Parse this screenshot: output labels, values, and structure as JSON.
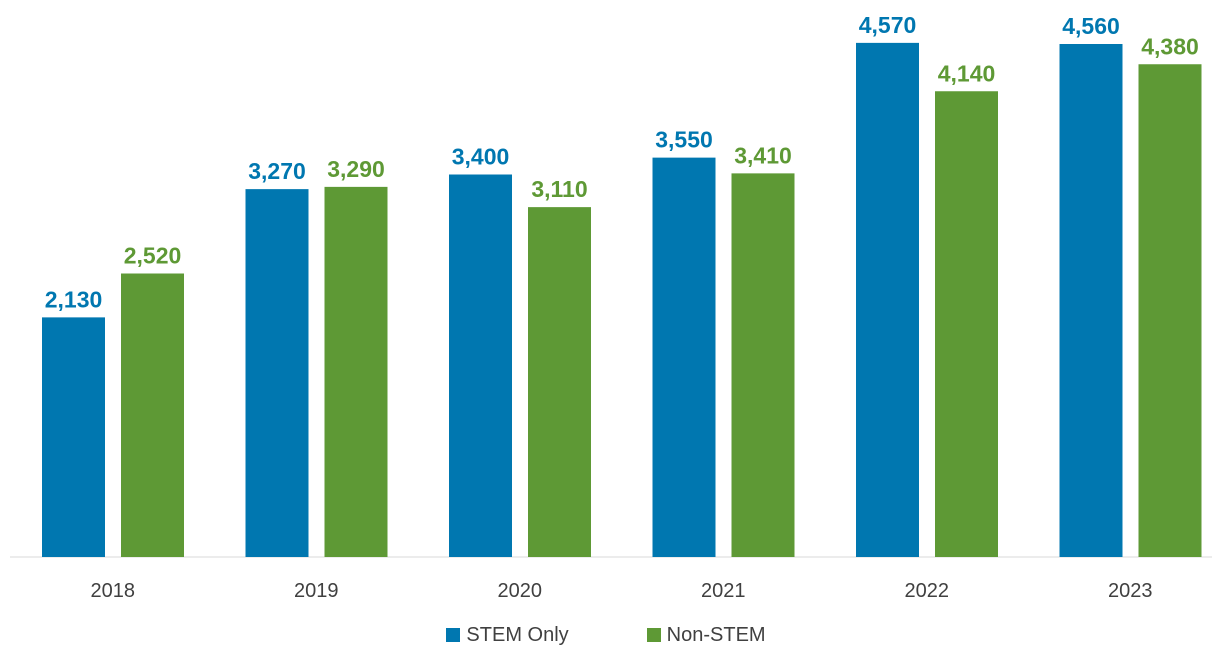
{
  "chart_data": {
    "type": "bar",
    "title": "",
    "xlabel": "",
    "ylabel": "",
    "categories": [
      "2018",
      "2019",
      "2020",
      "2021",
      "2022",
      "2023"
    ],
    "series": [
      {
        "name": "STEM Only",
        "color": "#0077B0",
        "values": [
          2130,
          3270,
          3400,
          3550,
          4570,
          4560
        ],
        "labels": [
          "2,130",
          "3,270",
          "3,400",
          "3,550",
          "4,570",
          "4,560"
        ]
      },
      {
        "name": "Non-STEM",
        "color": "#5E9935",
        "values": [
          2520,
          3290,
          3110,
          3410,
          4140,
          4380
        ],
        "labels": [
          "2,520",
          "3,290",
          "3,110",
          "3,410",
          "4,140",
          "4,380"
        ]
      }
    ],
    "ylim": [
      0,
      5000
    ],
    "grid": false,
    "legend_position": "bottom-center"
  }
}
